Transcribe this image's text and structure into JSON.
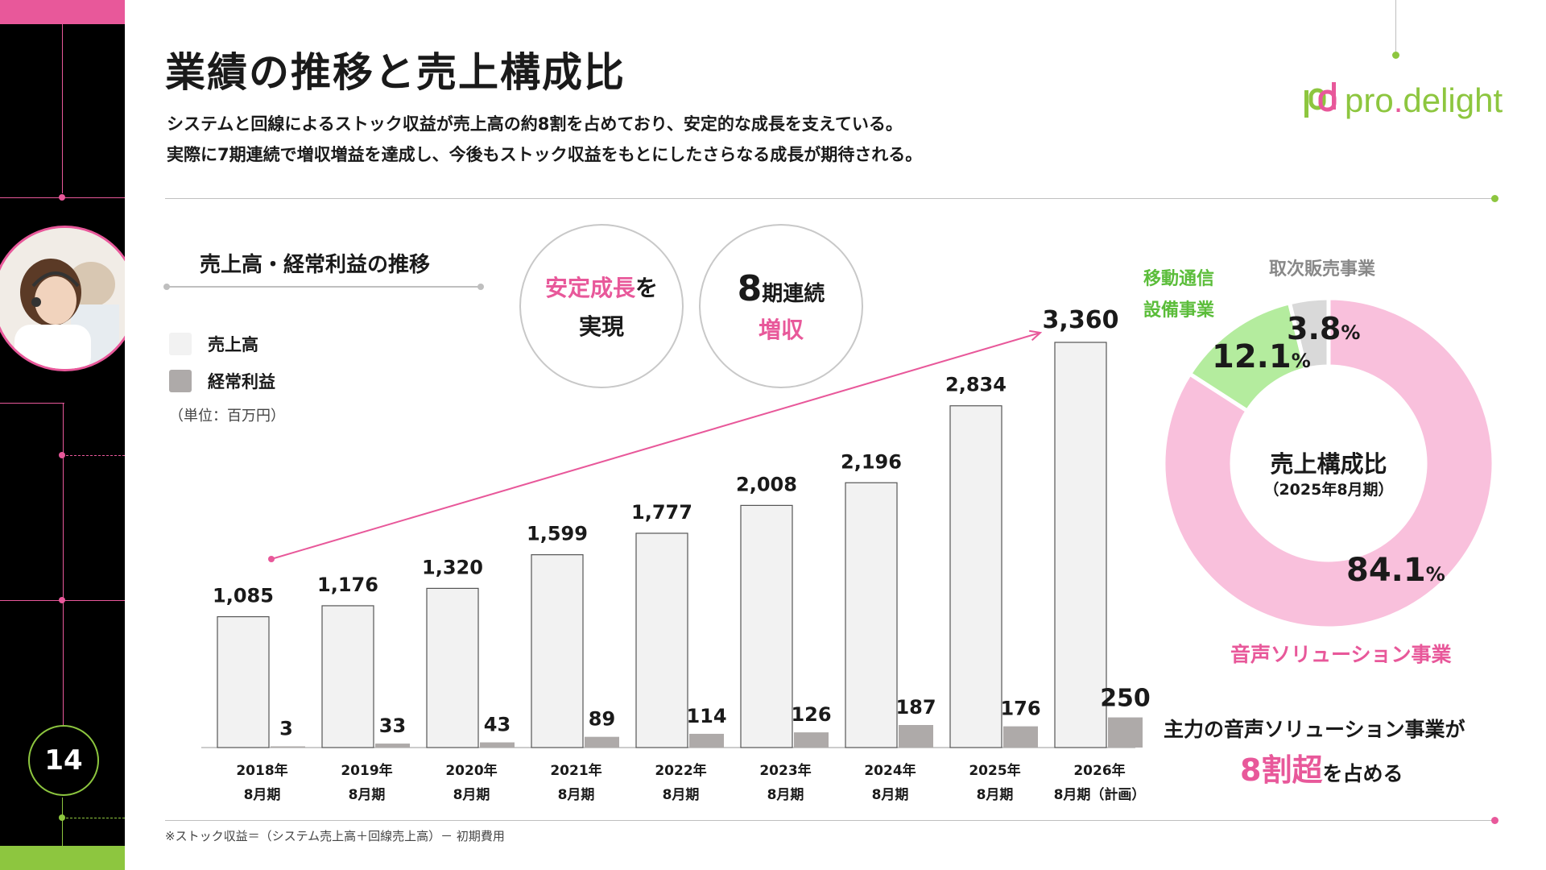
{
  "page_number": "14",
  "title": "業績の推移と売上構成比",
  "lead": {
    "line1": "システムと回線によるストック収益が売上高の約8割を占めており、安定的な成長を支えている。",
    "line2": "実際に7期連続で増収増益を達成し、今後もストック収益をもとにしたさらなる成長が期待される。"
  },
  "logo": {
    "mark": "pd",
    "name_left": "pro",
    "name_dot": ".",
    "name_right": "delight"
  },
  "section_title": "売上高・経常利益の推移",
  "legend": {
    "sales": "売上高",
    "profit": "経常利益"
  },
  "unit": "（単位：百万円）",
  "badge1": {
    "highlight": "安定成長",
    "suffix": "を",
    "line2": "実現"
  },
  "badge2": {
    "num": "8",
    "line1_rest": "期連続",
    "line2": "増収"
  },
  "footnote": "※ストック収益＝（システム売上高＋回線売上高）－ 初期費用",
  "colors": {
    "accent_pink": "#e8589a",
    "accent_green": "#8dc63f",
    "sales_bar": "#f2f2f2",
    "profit_bar": "#aeaaa9",
    "donut_pink": "#f9c0dc",
    "donut_green": "#b4ec9e",
    "donut_gray": "#d9d9d9"
  },
  "chart_data": [
    {
      "type": "bar",
      "categories": [
        [
          "2018年",
          "8月期"
        ],
        [
          "2019年",
          "8月期"
        ],
        [
          "2020年",
          "8月期"
        ],
        [
          "2021年",
          "8月期"
        ],
        [
          "2022年",
          "8月期"
        ],
        [
          "2023年",
          "8月期"
        ],
        [
          "2024年",
          "8月期"
        ],
        [
          "2025年",
          "8月期"
        ],
        [
          "2026年",
          "8月期（計画）"
        ]
      ],
      "series": [
        {
          "name": "売上高",
          "values": [
            1085,
            1176,
            1320,
            1599,
            1777,
            2008,
            2196,
            2834,
            3360
          ]
        },
        {
          "name": "経常利益",
          "values": [
            3,
            33,
            43,
            89,
            114,
            126,
            187,
            176,
            250
          ]
        }
      ],
      "value_labels": {
        "sales": [
          "1,085",
          "1,176",
          "1,320",
          "1,599",
          "1,777",
          "2,008",
          "2,196",
          "2,834",
          "3,360"
        ],
        "profit": [
          "3",
          "33",
          "43",
          "89",
          "114",
          "126",
          "187",
          "176",
          "250"
        ]
      },
      "title": "売上高・経常利益の推移",
      "ylabel": "（単位：百万円）",
      "legend": "top-left",
      "grid": false
    },
    {
      "type": "pie",
      "title": "売上構成比",
      "subtitle": "（2025年8月期）",
      "slices": [
        {
          "label": "音声ソリューション事業",
          "value": 84.1,
          "display": "84.1",
          "color": "#f9c0dc"
        },
        {
          "label": "移動通信設備事業",
          "value": 12.1,
          "display": "12.1",
          "color": "#b4ec9e"
        },
        {
          "label": "取次販売事業",
          "value": 3.8,
          "display": "3.8",
          "color": "#d9d9d9"
        }
      ],
      "percent_sign": "%",
      "segment_labels": {
        "voice": "音声ソリューション事業",
        "mobile_line1": "移動通信",
        "mobile_line2": "設備事業",
        "agency": "取次販売事業"
      }
    }
  ],
  "conclusion": {
    "line1": "主力の音声ソリューション事業が",
    "big": "8割超",
    "rest": "を占める"
  }
}
